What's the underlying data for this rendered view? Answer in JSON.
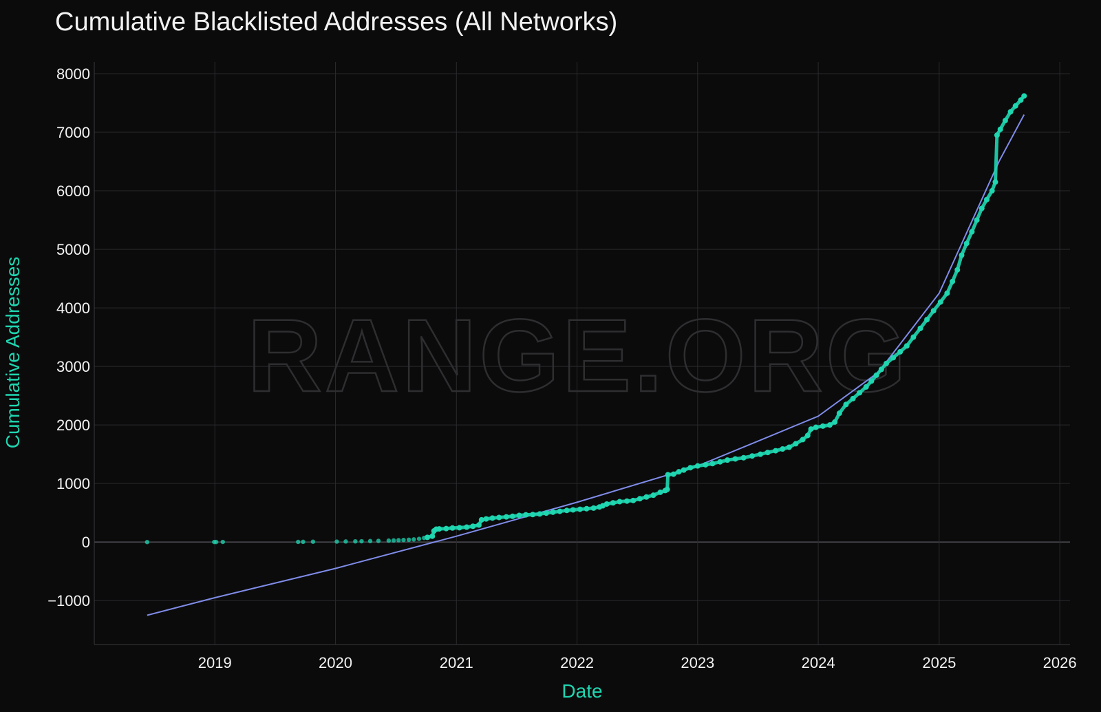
{
  "chart_data": {
    "type": "scatter",
    "title": "Cumulative Blacklisted Addresses (All Networks)",
    "xlabel": "Date",
    "ylabel": "Cumulative Addresses",
    "watermark": "RANGE.ORG",
    "grid": true,
    "legend": "none",
    "xlim": [
      "2018-01-01",
      "2026-02-01"
    ],
    "ylim": [
      -1750,
      8200
    ],
    "x_ticks": [
      "2019",
      "2020",
      "2021",
      "2022",
      "2023",
      "2024",
      "2025",
      "2026"
    ],
    "y_ticks": [
      -1000,
      0,
      1000,
      2000,
      3000,
      4000,
      5000,
      6000,
      7000,
      8000
    ],
    "y_tick_labels": [
      "−1000",
      "0",
      "1000",
      "2000",
      "3000",
      "4000",
      "5000",
      "6000",
      "7000",
      "8000"
    ],
    "colors": {
      "points": "#1fd6b0",
      "trend": "#7f8ce8",
      "background": "#0b0b0c",
      "grid": "#2a2a2d",
      "text": "#f2f2f2",
      "axis_label": "#1fd6b0"
    },
    "series": [
      {
        "type": "scatter",
        "points": [
          [
            "2018-06-10",
            0
          ],
          [
            "2018-12-30",
            1
          ],
          [
            "2019-01-05",
            1
          ],
          [
            "2019-01-25",
            2
          ],
          [
            "2019-09-10",
            3
          ],
          [
            "2019-09-25",
            4
          ],
          [
            "2019-10-25",
            6
          ],
          [
            "2020-01-05",
            8
          ],
          [
            "2020-02-01",
            10
          ],
          [
            "2020-03-01",
            12
          ],
          [
            "2020-03-20",
            14
          ],
          [
            "2020-04-15",
            17
          ],
          [
            "2020-05-10",
            20
          ],
          [
            "2020-06-10",
            25
          ],
          [
            "2020-06-25",
            28
          ],
          [
            "2020-07-10",
            32
          ],
          [
            "2020-07-25",
            36
          ],
          [
            "2020-08-10",
            40
          ],
          [
            "2020-08-25",
            45
          ],
          [
            "2020-09-10",
            55
          ],
          [
            "2020-09-25",
            70
          ],
          [
            "2020-10-05",
            80
          ],
          [
            "2020-10-20",
            100
          ],
          [
            "2020-10-25",
            190
          ],
          [
            "2020-11-01",
            220
          ],
          [
            "2020-11-10",
            225
          ],
          [
            "2020-12-01",
            230
          ],
          [
            "2020-12-20",
            240
          ],
          [
            "2021-01-10",
            245
          ],
          [
            "2021-02-01",
            255
          ],
          [
            "2021-02-20",
            270
          ],
          [
            "2021-03-10",
            290
          ],
          [
            "2021-03-18",
            380
          ],
          [
            "2021-04-01",
            395
          ],
          [
            "2021-04-20",
            410
          ],
          [
            "2021-05-10",
            420
          ],
          [
            "2021-06-01",
            430
          ],
          [
            "2021-06-20",
            440
          ],
          [
            "2021-07-10",
            455
          ],
          [
            "2021-07-30",
            465
          ],
          [
            "2021-08-20",
            470
          ],
          [
            "2021-09-10",
            480
          ],
          [
            "2021-09-30",
            495
          ],
          [
            "2021-10-20",
            510
          ],
          [
            "2021-11-10",
            525
          ],
          [
            "2021-12-01",
            540
          ],
          [
            "2021-12-20",
            550
          ],
          [
            "2022-01-10",
            560
          ],
          [
            "2022-01-30",
            570
          ],
          [
            "2022-02-20",
            580
          ],
          [
            "2022-03-10",
            600
          ],
          [
            "2022-03-20",
            620
          ],
          [
            "2022-04-01",
            650
          ],
          [
            "2022-04-20",
            670
          ],
          [
            "2022-05-10",
            690
          ],
          [
            "2022-06-01",
            700
          ],
          [
            "2022-06-20",
            710
          ],
          [
            "2022-07-10",
            740
          ],
          [
            "2022-07-30",
            770
          ],
          [
            "2022-08-20",
            800
          ],
          [
            "2022-09-10",
            850
          ],
          [
            "2022-09-25",
            880
          ],
          [
            "2022-10-01",
            900
          ],
          [
            "2022-10-03",
            1150
          ],
          [
            "2022-10-20",
            1160
          ],
          [
            "2022-11-05",
            1200
          ],
          [
            "2022-11-20",
            1230
          ],
          [
            "2022-12-10",
            1270
          ],
          [
            "2023-01-01",
            1300
          ],
          [
            "2023-01-25",
            1320
          ],
          [
            "2023-02-15",
            1340
          ],
          [
            "2023-03-10",
            1370
          ],
          [
            "2023-04-01",
            1400
          ],
          [
            "2023-04-25",
            1420
          ],
          [
            "2023-05-20",
            1440
          ],
          [
            "2023-06-15",
            1470
          ],
          [
            "2023-07-10",
            1500
          ],
          [
            "2023-08-01",
            1530
          ],
          [
            "2023-08-25",
            1560
          ],
          [
            "2023-09-15",
            1590
          ],
          [
            "2023-10-05",
            1620
          ],
          [
            "2023-10-25",
            1680
          ],
          [
            "2023-11-15",
            1750
          ],
          [
            "2023-11-30",
            1820
          ],
          [
            "2023-12-10",
            1930
          ],
          [
            "2023-12-25",
            1960
          ],
          [
            "2024-01-15",
            1980
          ],
          [
            "2024-02-05",
            2000
          ],
          [
            "2024-02-20",
            2050
          ],
          [
            "2024-03-05",
            2200
          ],
          [
            "2024-03-25",
            2350
          ],
          [
            "2024-04-15",
            2450
          ],
          [
            "2024-05-05",
            2550
          ],
          [
            "2024-05-25",
            2650
          ],
          [
            "2024-06-10",
            2750
          ],
          [
            "2024-06-25",
            2850
          ],
          [
            "2024-07-10",
            2950
          ],
          [
            "2024-07-25",
            3050
          ],
          [
            "2024-08-15",
            3150
          ],
          [
            "2024-09-05",
            3250
          ],
          [
            "2024-09-25",
            3350
          ],
          [
            "2024-10-15",
            3500
          ],
          [
            "2024-11-05",
            3650
          ],
          [
            "2024-11-25",
            3800
          ],
          [
            "2024-12-15",
            3950
          ],
          [
            "2025-01-05",
            4100
          ],
          [
            "2025-01-25",
            4250
          ],
          [
            "2025-02-10",
            4450
          ],
          [
            "2025-02-25",
            4650
          ],
          [
            "2025-03-10",
            4900
          ],
          [
            "2025-03-25",
            5100
          ],
          [
            "2025-04-10",
            5300
          ],
          [
            "2025-04-25",
            5500
          ],
          [
            "2025-05-10",
            5700
          ],
          [
            "2025-05-25",
            5850
          ],
          [
            "2025-06-10",
            6000
          ],
          [
            "2025-06-20",
            6150
          ],
          [
            "2025-06-25",
            6950
          ],
          [
            "2025-07-05",
            7050
          ],
          [
            "2025-07-20",
            7200
          ],
          [
            "2025-08-05",
            7350
          ],
          [
            "2025-08-20",
            7450
          ],
          [
            "2025-09-05",
            7550
          ],
          [
            "2025-09-15",
            7620
          ]
        ]
      },
      {
        "type": "line",
        "points": [
          [
            "2018-06-10",
            -1250
          ],
          [
            "2019-01-01",
            -950
          ],
          [
            "2020-01-01",
            -450
          ],
          [
            "2021-01-01",
            100
          ],
          [
            "2022-01-01",
            680
          ],
          [
            "2023-01-01",
            1300
          ],
          [
            "2023-07-01",
            1720
          ],
          [
            "2024-01-01",
            2150
          ],
          [
            "2024-07-01",
            2900
          ],
          [
            "2025-01-01",
            4250
          ],
          [
            "2025-07-01",
            6500
          ],
          [
            "2025-09-15",
            7300
          ]
        ]
      }
    ]
  }
}
